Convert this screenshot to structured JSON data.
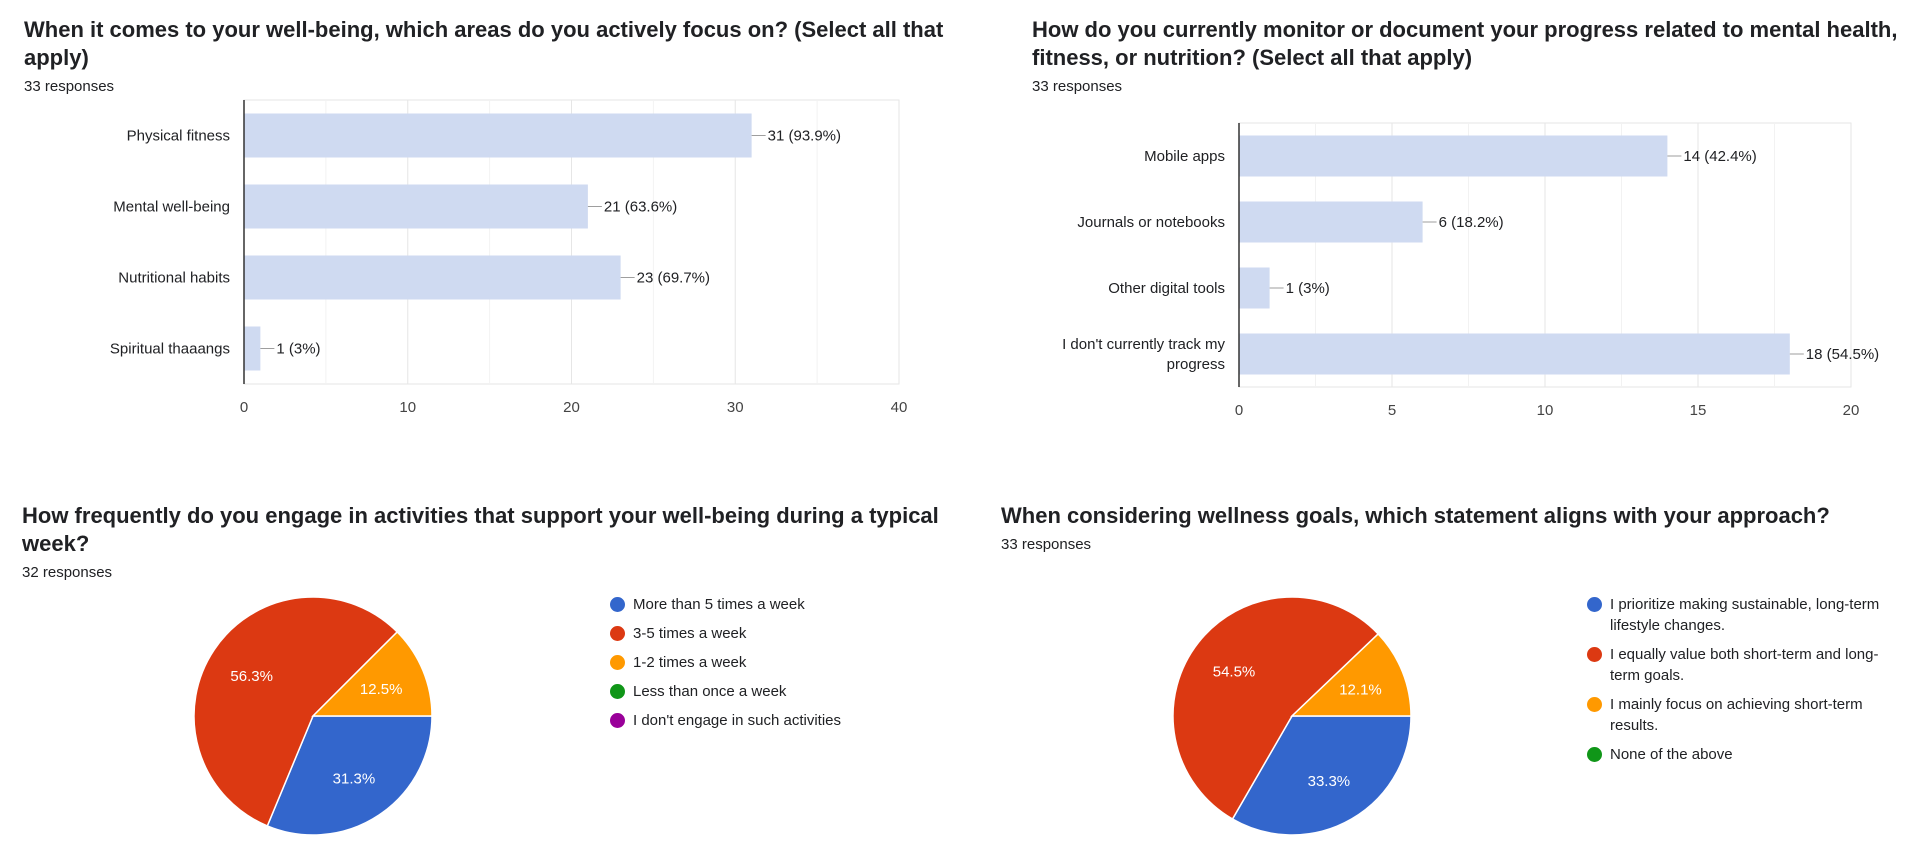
{
  "chart_data": [
    {
      "id": "focus_areas",
      "type": "bar",
      "title": "When it comes to your well-being, which areas do you actively focus on? (Select all that apply)",
      "responses": "33 responses",
      "categories": [
        "Physical fitness",
        "Mental well-being",
        "Nutritional habits",
        "Spiritual thaaangs"
      ],
      "values": [
        31,
        21,
        23,
        1
      ],
      "data_labels": [
        "31 (93.9%)",
        "21 (63.6%)",
        "23 (69.7%)",
        "1 (3%)"
      ],
      "xlim": [
        0,
        40
      ],
      "ticks": [
        0,
        10,
        20,
        30,
        40
      ],
      "color": "#cfdaf1",
      "grid": true
    },
    {
      "id": "tracking",
      "type": "bar",
      "title": "How do you currently monitor or document your progress related to mental health, fitness, or nutrition? (Select all that apply)",
      "responses": "33 responses",
      "categories": [
        "Mobile apps",
        "Journals or notebooks",
        "Other digital tools",
        "I don't currently track my progress"
      ],
      "values": [
        14,
        6,
        1,
        18
      ],
      "data_labels": [
        "14 (42.4%)",
        "6 (18.2%)",
        "1 (3%)",
        "18 (54.5%)"
      ],
      "xlim": [
        0,
        20
      ],
      "ticks": [
        0,
        5,
        10,
        15,
        20
      ],
      "color": "#cfdaf1",
      "grid": true
    },
    {
      "id": "frequency",
      "type": "pie",
      "title": "How frequently do you engage in activities that support your well-being during a typical week?",
      "responses": "32 responses",
      "slices": [
        {
          "label": "More than 5 times a week",
          "value": 31.3,
          "color": "#3366cc"
        },
        {
          "label": "3-5 times a week",
          "value": 56.3,
          "color": "#dc3912"
        },
        {
          "label": "1-2 times a week",
          "value": 12.5,
          "color": "#ff9900"
        },
        {
          "label": "Less than once a week",
          "value": 0,
          "color": "#109618"
        },
        {
          "label": "I don't engage in such activities",
          "value": 0,
          "color": "#990099"
        }
      ],
      "legend_position": "right"
    },
    {
      "id": "approach",
      "type": "pie",
      "title": "When considering wellness goals, which statement aligns with your approach?",
      "responses": "33 responses",
      "slices": [
        {
          "label": "I prioritize making sustainable, long-term lifestyle changes.",
          "value": 33.3,
          "color": "#3366cc"
        },
        {
          "label": "I equally value both short-term and long-term goals.",
          "value": 54.5,
          "color": "#dc3912"
        },
        {
          "label": "I mainly focus on achieving short-term results.",
          "value": 12.1,
          "color": "#ff9900"
        },
        {
          "label": "None of the above",
          "value": 0,
          "color": "#109618"
        }
      ],
      "legend_position": "right"
    }
  ]
}
